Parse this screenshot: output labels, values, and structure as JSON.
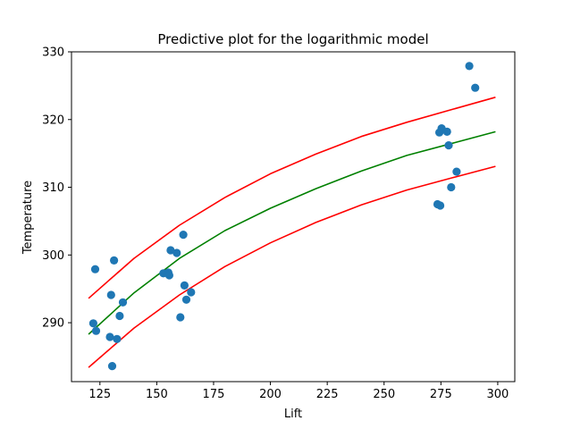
{
  "chart_data": {
    "type": "scatter",
    "title": "Predictive plot for the logarithmic model",
    "xlabel": "Lift",
    "ylabel": "Temperature",
    "xlim": [
      112.5,
      307.5
    ],
    "ylim": [
      281.3,
      330.0
    ],
    "xticks": [
      125,
      150,
      175,
      200,
      225,
      250,
      275,
      300
    ],
    "yticks": [
      290,
      300,
      310,
      320,
      330
    ],
    "grid": false,
    "legend": "none",
    "colors": {
      "points": "#1f77b4",
      "fit": "#008000",
      "bounds": "#ff0000"
    },
    "series": [
      {
        "type": "scatter",
        "x": [
          122.1,
          123.3,
          122.9,
          129.4,
          129.9,
          130.4,
          131.2,
          132.5,
          133.7,
          135.1,
          152.9,
          155.1,
          155.5,
          156.1,
          158.8,
          160.4,
          161.7,
          162.2,
          163.0,
          165.1,
          273.5,
          274.3,
          274.7,
          275.3,
          277.7,
          278.4,
          279.5,
          281.9,
          287.5,
          290.1
        ],
        "y": [
          289.9,
          288.8,
          297.9,
          287.9,
          294.1,
          283.6,
          299.2,
          287.6,
          291.0,
          293.0,
          297.3,
          297.4,
          297.0,
          300.7,
          300.3,
          290.8,
          303.0,
          295.5,
          293.4,
          294.5,
          307.5,
          318.1,
          307.3,
          318.7,
          318.2,
          316.2,
          310.0,
          312.3,
          327.9,
          324.7
        ]
      },
      {
        "type": "line",
        "x": [
          120,
          140,
          160,
          180,
          200,
          220,
          240,
          260,
          280,
          299
        ],
        "y": [
          288.3,
          294.4,
          299.5,
          303.6,
          306.9,
          309.8,
          312.4,
          314.7,
          316.5,
          318.2
        ]
      },
      {
        "type": "line",
        "x": [
          120,
          140,
          160,
          180,
          200,
          220,
          240,
          260,
          280,
          299
        ],
        "y": [
          293.6,
          299.5,
          304.4,
          308.5,
          312.0,
          314.9,
          317.5,
          319.6,
          321.5,
          323.3
        ]
      },
      {
        "type": "line",
        "x": [
          120,
          140,
          160,
          180,
          200,
          220,
          240,
          260,
          280,
          299
        ],
        "y": [
          283.4,
          289.2,
          294.1,
          298.3,
          301.8,
          304.8,
          307.4,
          309.6,
          311.4,
          313.1
        ]
      }
    ]
  }
}
